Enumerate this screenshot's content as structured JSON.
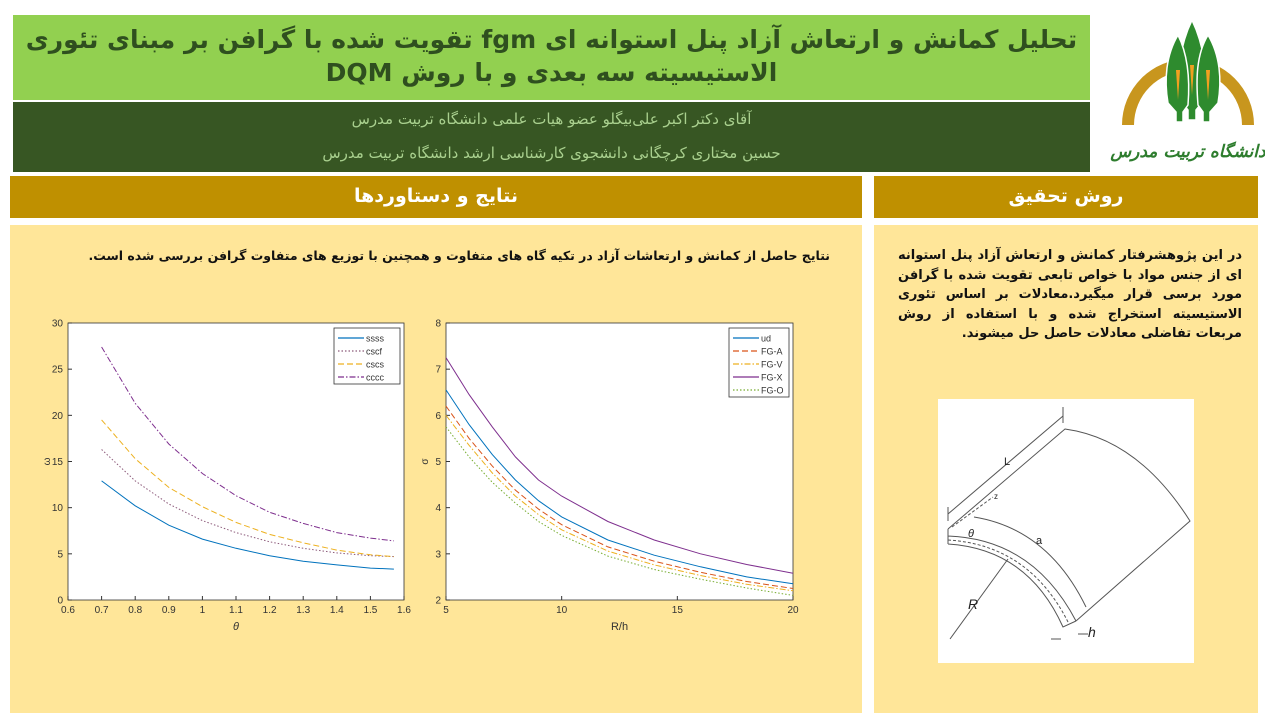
{
  "poster": {
    "title": "تحلیل کمانش و ارتعاش آزاد پنل استوانه ای fgm تقویت شده با گرافن بر مبنای تئوری الاستیسیته سه بعدی و با روش DQM",
    "authors": [
      "آقای دکتر اکبر علی‌بیگلو عضو هیات علمی دانشگاه تربیت مدرس",
      "حسین مختاری کرچگانی دانشجوی کارشناسی ارشد دانشگاه تربیت مدرس"
    ],
    "logo_text": "دانشگاه تربیت مدرس",
    "colors": {
      "title_bg": "#92d050",
      "authors_bg": "#375623",
      "header_bg": "#bf9000",
      "panel_bg": "#ffe699"
    }
  },
  "results": {
    "heading": "نتایج و دستاوردها",
    "text": "نتایج حاصل از کمانش و ارتعاشات آزاد در تکیه گاه های متفاوت و همچنین با توزیع های متفاوت گرافن بررسی شده است."
  },
  "method": {
    "heading": "روش تحقیق",
    "text": "در این پژوهشرفتار کمانش و ارتعاش آزاد پنل استوانه ای از جنس مواد با خواص تابعی تقویت شده با گرافن مورد برسی قرار میگیرد.معادلات بر اساس تئوری الاستیسیته استخراج شده و با استفاده از روش مربعات تفاضلی معادلات حاصل حل میشوند.",
    "diagram_labels": {
      "L": "L",
      "z": "z",
      "theta": "θ",
      "a": "a",
      "R": "R",
      "h": "h"
    }
  },
  "chart_data": [
    {
      "type": "line",
      "xlabel": "θ",
      "ylabel": "ω",
      "xlim": [
        0.6,
        1.6
      ],
      "ylim": [
        0,
        30
      ],
      "xticks": [
        0.6,
        0.7,
        0.8,
        0.9,
        1,
        1.1,
        1.2,
        1.3,
        1.4,
        1.5,
        1.6
      ],
      "yticks": [
        0,
        5,
        10,
        15,
        20,
        25,
        30
      ],
      "legend": "top-right",
      "grid": false,
      "x": [
        0.7,
        0.8,
        0.9,
        1.0,
        1.1,
        1.2,
        1.3,
        1.4,
        1.5,
        1.57
      ],
      "series": [
        {
          "name": "ssss",
          "color": "#0072bd",
          "dash": "solid",
          "values": [
            12.9,
            10.2,
            8.1,
            6.6,
            5.6,
            4.8,
            4.2,
            3.8,
            3.45,
            3.35
          ]
        },
        {
          "name": "cscf",
          "color": "#8c5a7a",
          "dash": "dotted",
          "values": [
            16.3,
            12.9,
            10.4,
            8.6,
            7.3,
            6.3,
            5.6,
            5.1,
            4.8,
            4.7
          ]
        },
        {
          "name": "cscs",
          "color": "#edb120",
          "dash": "dashed",
          "values": [
            19.5,
            15.3,
            12.2,
            10.1,
            8.4,
            7.1,
            6.2,
            5.4,
            4.9,
            4.7
          ]
        },
        {
          "name": "cccc",
          "color": "#7e2f8e",
          "dash": "dashdot",
          "values": [
            27.4,
            21.3,
            16.9,
            13.7,
            11.3,
            9.5,
            8.3,
            7.3,
            6.7,
            6.4
          ]
        }
      ]
    },
    {
      "type": "line",
      "xlabel": "R/h",
      "ylabel": "σ",
      "xlim": [
        5,
        20
      ],
      "ylim": [
        2,
        8
      ],
      "xticks": [
        5,
        10,
        15,
        20
      ],
      "yticks": [
        2,
        3,
        4,
        5,
        6,
        7,
        8
      ],
      "legend": "top-right",
      "grid": false,
      "x": [
        5,
        6,
        7,
        8,
        9,
        10,
        12,
        14,
        16,
        18,
        20
      ],
      "series": [
        {
          "name": "ud",
          "color": "#0072bd",
          "dash": "solid",
          "values": [
            6.55,
            5.8,
            5.15,
            4.6,
            4.15,
            3.8,
            3.3,
            2.97,
            2.72,
            2.5,
            2.35
          ]
        },
        {
          "name": "FG-A",
          "color": "#d95319",
          "dash": "dashed",
          "values": [
            6.2,
            5.5,
            4.9,
            4.38,
            3.97,
            3.63,
            3.15,
            2.84,
            2.6,
            2.4,
            2.25
          ]
        },
        {
          "name": "FG-V",
          "color": "#edb120",
          "dash": "dashdot",
          "values": [
            6.0,
            5.35,
            4.75,
            4.25,
            3.85,
            3.52,
            3.06,
            2.76,
            2.53,
            2.34,
            2.2
          ]
        },
        {
          "name": "FG-X",
          "color": "#7e2f8e",
          "dash": "solid",
          "values": [
            7.25,
            6.45,
            5.75,
            5.1,
            4.6,
            4.25,
            3.7,
            3.3,
            3.0,
            2.77,
            2.58
          ]
        },
        {
          "name": "FG-O",
          "color": "#77ac30",
          "dash": "dotted",
          "values": [
            5.75,
            5.1,
            4.55,
            4.1,
            3.7,
            3.4,
            2.95,
            2.66,
            2.45,
            2.26,
            2.1
          ]
        }
      ]
    }
  ]
}
